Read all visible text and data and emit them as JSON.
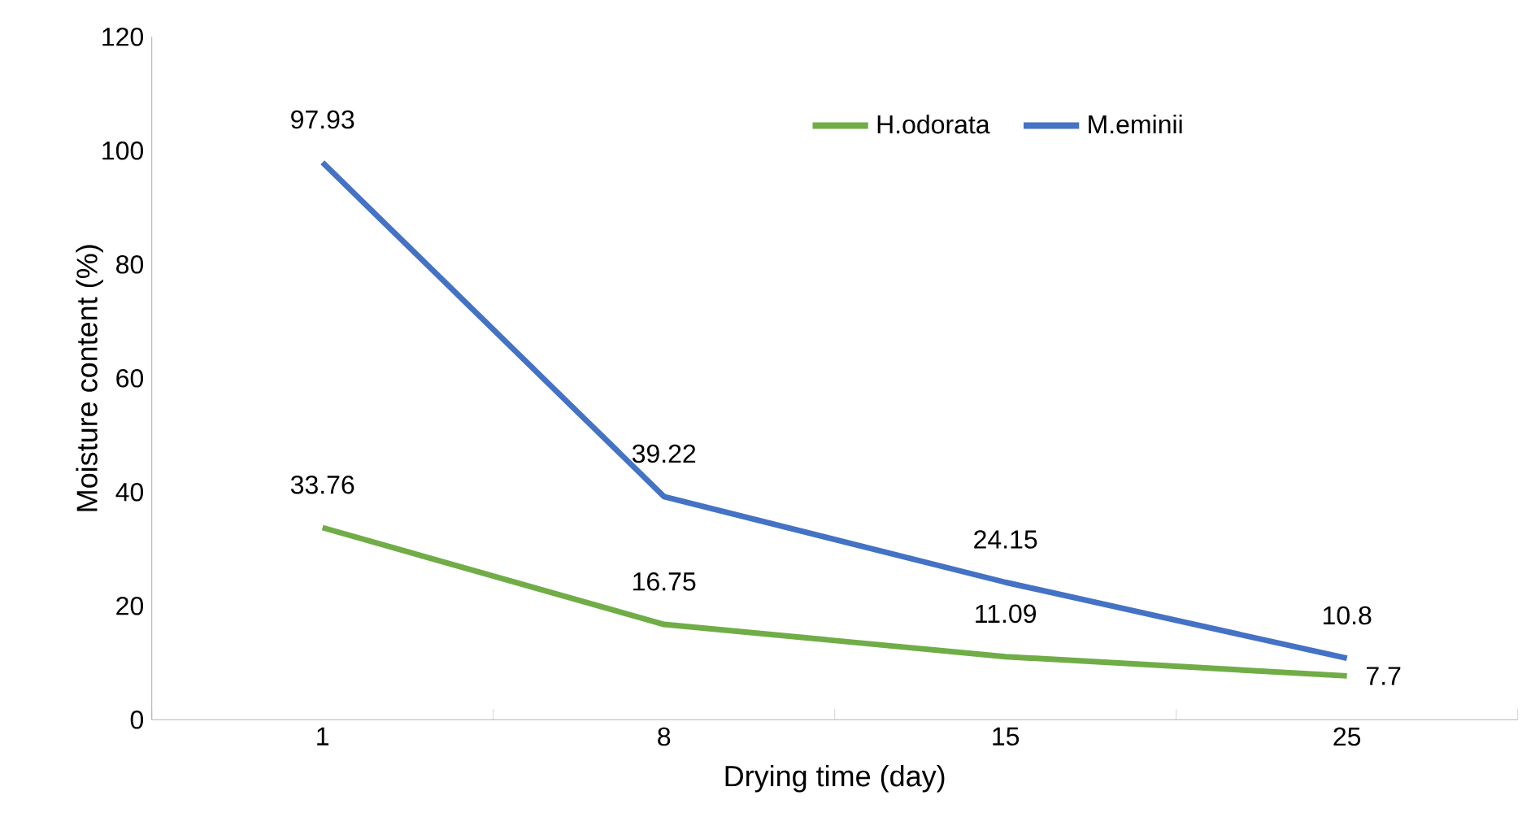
{
  "chart_data": {
    "type": "line",
    "xlabel": "Drying time (day)",
    "ylabel": "Moisture content (%)",
    "categories": [
      "1",
      "8",
      "15",
      "25"
    ],
    "series": [
      {
        "name": "H.odorata",
        "color": "#70ad47",
        "values": [
          33.76,
          16.75,
          11.09,
          7.7
        ]
      },
      {
        "name": "M.eminii",
        "color": "#4472c4",
        "values": [
          97.93,
          39.22,
          24.15,
          10.8
        ]
      }
    ],
    "ylim": [
      0,
      120
    ],
    "yticks": [
      0,
      20,
      40,
      60,
      80,
      100,
      120
    ],
    "data_labels": true,
    "legend": "top right",
    "grid": false,
    "marker": "none",
    "line_style": "solid"
  }
}
